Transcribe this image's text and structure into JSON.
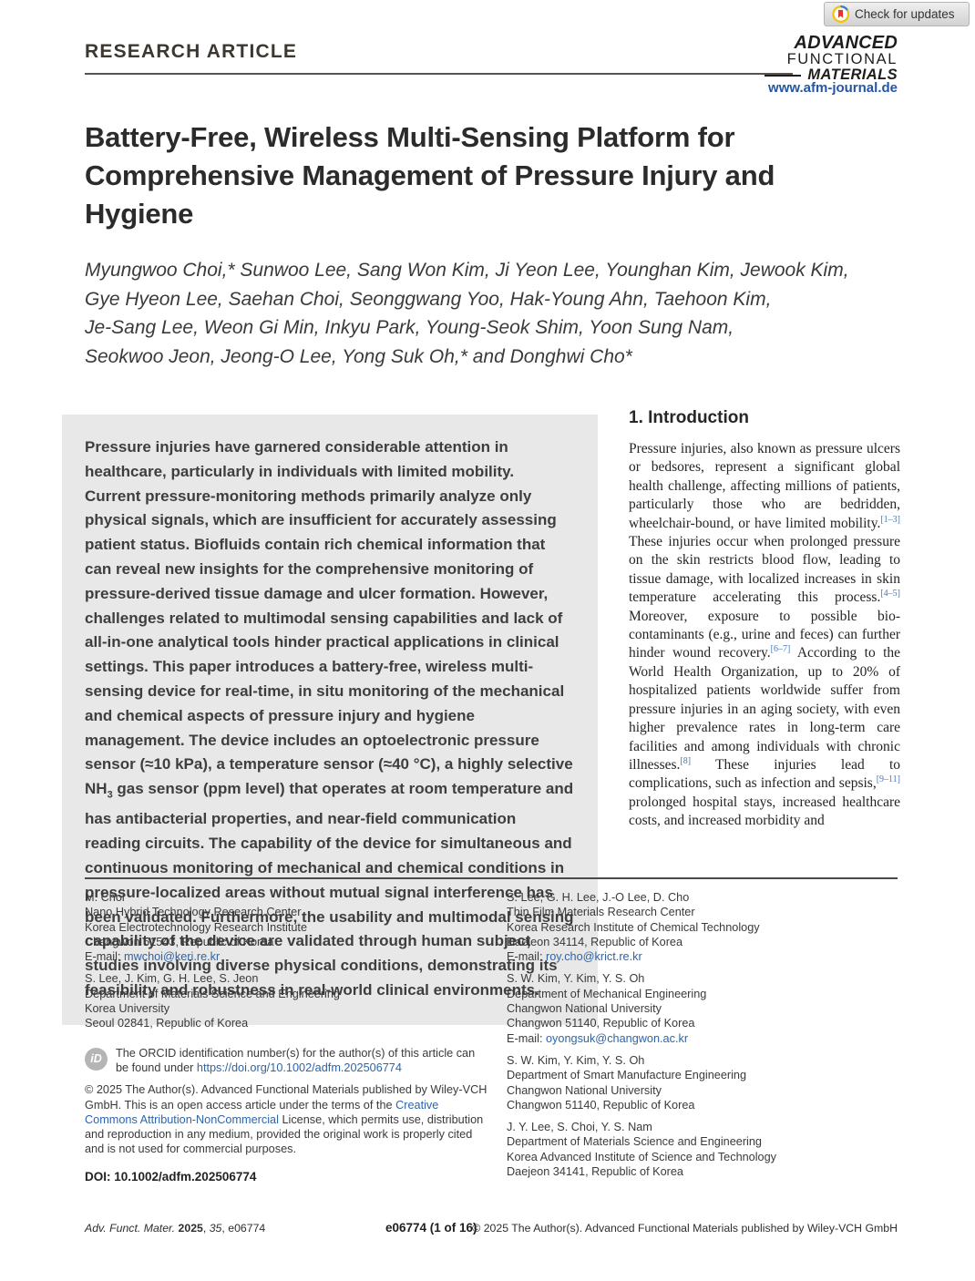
{
  "badge": {
    "label": "Check for updates"
  },
  "header": {
    "kicker": "RESEARCH ARTICLE",
    "logo_lines": {
      "l1": "ADVANCED",
      "l2": "FUNCTIONAL",
      "l3": "MATERIALS"
    },
    "journal_url": "www.afm-journal.de"
  },
  "title_lines": [
    "Battery-Free, Wireless Multi-Sensing Platform for",
    "Comprehensive Management of Pressure Injury and",
    "Hygiene"
  ],
  "author_lines": [
    "Myungwoo Choi,* Sunwoo Lee, Sang Won Kim, Ji Yeon Lee, Younghan Kim, Jewook Kim,",
    "Gye Hyeon Lee, Saehan Choi, Seonggwang Yoo, Hak-Young Ahn, Taehoon Kim,",
    "Je-Sang Lee, Weon Gi Min, Inkyu Park, Young-Seok Shim, Yoon Sung Nam,",
    "Seokwoo Jeon, Jeong-O Lee, Yong Suk Oh,* and Donghwi Cho*"
  ],
  "abstract": {
    "segments": [
      {
        "t": "Pressure injuries have garnered considerable attention in healthcare, particularly in individuals with limited mobility. Current pressure-monitoring methods primarily analyze only physical signals, which are insufficient for accurately assessing patient status. Biofluids contain rich chemical information that can reveal new insights for the comprehensive monitoring of pressure-derived tissue damage and ulcer formation. However, challenges related to multimodal sensing capabilities and lack of all-in-one analytical tools hinder practical applications in clinical settings. This paper introduces a battery-free, wireless multi-sensing device for real-time, in situ monitoring of the mechanical and chemical aspects of pressure injury and hygiene management. The device includes an optoelectronic pressure sensor (≈10 kPa), a temperature sensor (≈40 °C), a highly selective NH"
      },
      {
        "t": "3",
        "style": "sub"
      },
      {
        "t": " gas sensor (ppm level) that operates at room temperature and has antibacterial properties, and near-field communication reading circuits. The capability of the device for simultaneous and continuous monitoring of mechanical and chemical conditions in pressure-localized areas without mutual signal interference has been validated. Furthermore, the usability and multimodal sensing capability of the device are validated through human subject studies involving diverse physical conditions, demonstrating its feasibility and robustness in real-world clinical environments."
      }
    ]
  },
  "introduction": {
    "heading": "1. Introduction",
    "segments": [
      {
        "t": "Pressure injuries, also known as pressure ulcers or bedsores, represent a significant global health challenge, affecting millions of patients, particularly those who are bedridden, wheelchair-bound, or have limited mobility."
      },
      {
        "t": "[1–3]",
        "style": "cite"
      },
      {
        "t": " These injuries occur when prolonged pressure on the skin restricts blood flow, leading to tissue damage, with localized increases in skin temperature accelerating this process."
      },
      {
        "t": "[4–5]",
        "style": "cite"
      },
      {
        "t": " Moreover, exposure to possible bio-contaminants (e.g., urine and feces) can further hinder wound recovery."
      },
      {
        "t": "[6–7]",
        "style": "cite"
      },
      {
        "t": " According to the World Health Organization, up to 20% of hospitalized patients worldwide suffer from pressure injuries in an aging society, with even higher prevalence rates in long-term care facilities and among individuals with chronic illnesses."
      },
      {
        "t": "[8]",
        "style": "cite"
      },
      {
        "t": " These injuries lead to complications, such as infection and sepsis,"
      },
      {
        "t": "[9–11]",
        "style": "cite"
      },
      {
        "t": " prolonged hospital stays, increased healthcare costs, and increased morbidity and"
      }
    ]
  },
  "affiliations": {
    "email_label": "E-mail: ",
    "left": [
      {
        "lines": [
          "M. Choi",
          "Nano Hybrid Technology Research Center",
          "Korea Electrotechnology Research Institute",
          "Changwon 51543, Republic of Korea"
        ],
        "email": "mwchoi@keri.re.kr"
      },
      {
        "lines": [
          "S. Lee, J. Kim, G. H. Lee, S. Jeon",
          "Department of Materials Science and Engineering",
          "Korea University",
          "Seoul 02841, Republic of Korea"
        ]
      }
    ],
    "right": [
      {
        "lines": [
          "S. Lee, G. H. Lee, J.-O Lee, D. Cho",
          "Thin Film Materials Research Center",
          "Korea Research Institute of Chemical Technology",
          "Daejeon 34114, Republic of Korea"
        ],
        "email": "roy.cho@krict.re.kr"
      },
      {
        "lines": [
          "S. W. Kim, Y. Kim, Y. S. Oh",
          "Department of Mechanical Engineering",
          "Changwon National University",
          "Changwon 51140, Republic of Korea"
        ],
        "email": "oyongsuk@changwon.ac.kr"
      },
      {
        "lines": [
          "S. W. Kim, Y. Kim, Y. S. Oh",
          "Department of Smart Manufacture Engineering",
          "Changwon National University",
          "Changwon 51140, Republic of Korea"
        ]
      },
      {
        "lines": [
          "J. Y. Lee, S. Choi, Y. S. Nam",
          "Department of Materials Science and Engineering",
          "Korea Advanced Institute of Science and Technology",
          "Daejeon 34141, Republic of Korea"
        ]
      }
    ]
  },
  "orcid_note": {
    "segments": [
      {
        "t": "The ORCID identification number(s) for the author(s) of this article can be found under "
      },
      {
        "t": "https://doi.org/10.1002/adfm.202506774",
        "style": "link"
      }
    ],
    "icon_text": "iD"
  },
  "copyright_note": {
    "segments": [
      {
        "t": "© 2025 The Author(s). Advanced Functional Materials published by Wiley-VCH GmbH. This is an open access article under the terms of the "
      },
      {
        "t": "Creative Commons Attribution-NonCommercial",
        "style": "link"
      },
      {
        "t": " License, which permits use, distribution and reproduction in any medium, provided the original work is properly cited and is not used for commercial purposes."
      }
    ]
  },
  "doi_line": "DOI: 10.1002/adfm.202506774",
  "bottom_footer": {
    "left_segments": [
      {
        "t": "Adv. Funct. Mater. ",
        "style": "i"
      },
      {
        "t": "2025",
        "style": "b"
      },
      {
        "t": ", "
      },
      {
        "t": "35",
        "style": "i"
      },
      {
        "t": ", e06774"
      }
    ],
    "center": "e06774 (1 of 16)",
    "right": "© 2025 The Author(s). Advanced Functional Materials published by Wiley-VCH GmbH"
  },
  "colors": {
    "link_blue": "#2e64a9",
    "url_blue": "#2456a4",
    "citation_blue": "#4a7ab5",
    "abstract_background": "#e8e8e8",
    "badge_yellow": "#f0c419",
    "badge_blue": "#3e7dbd",
    "badge_red": "#d53b2f",
    "orcid_gray": "#b5b5b5"
  }
}
